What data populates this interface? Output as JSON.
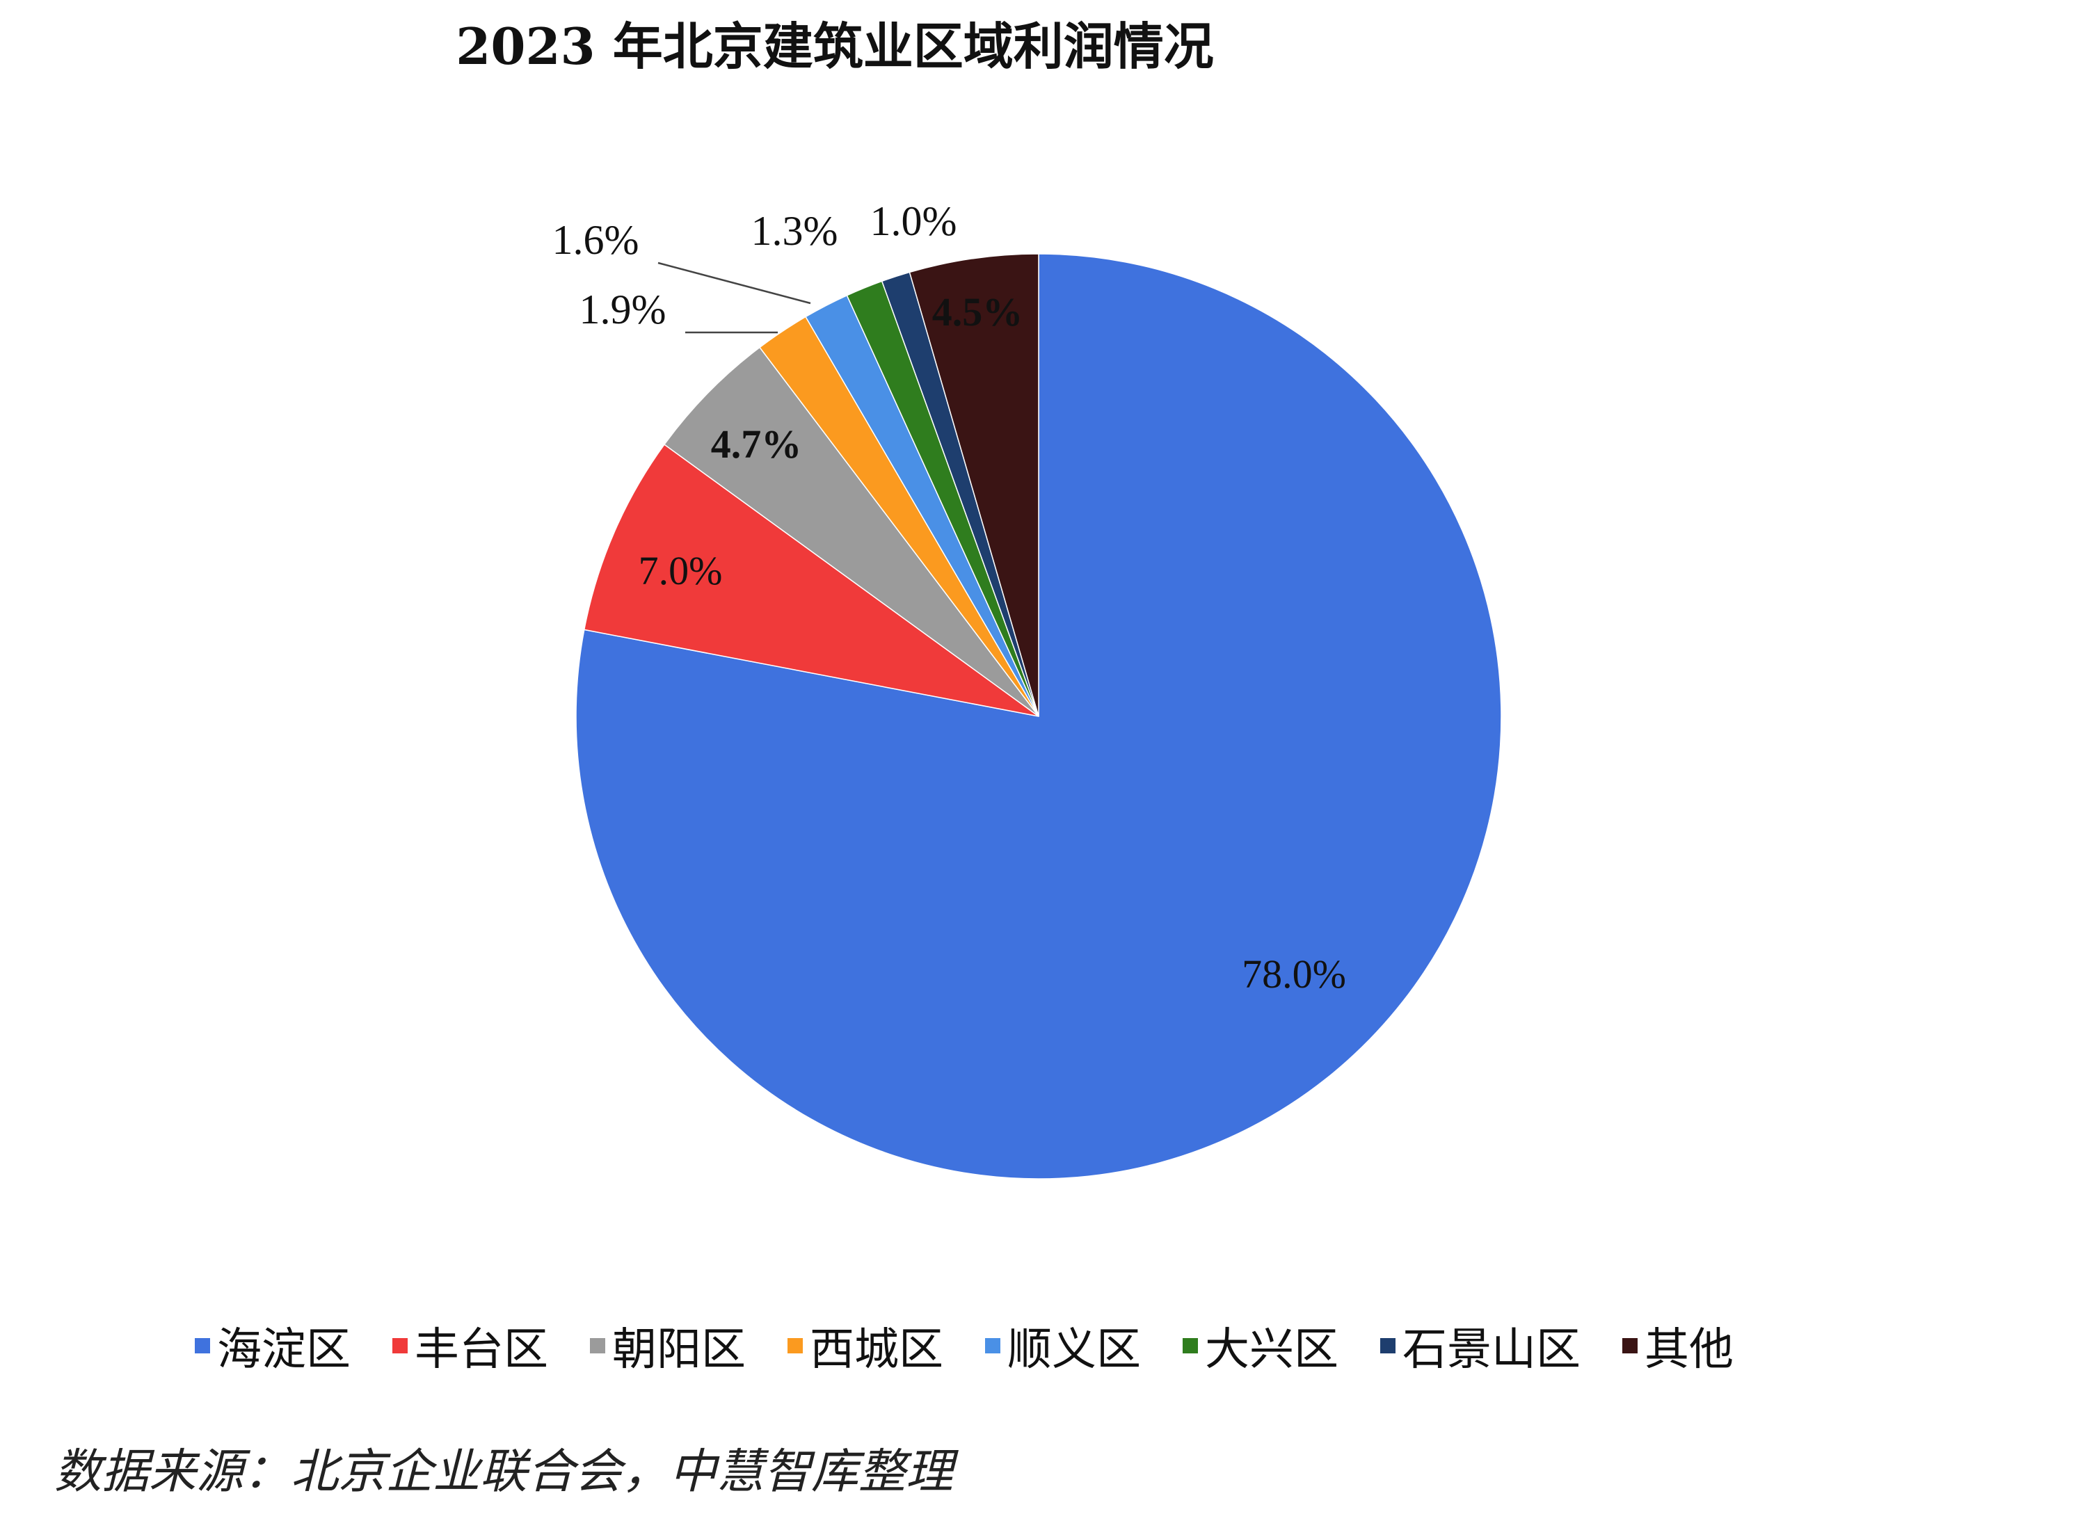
{
  "chart_data": {
    "type": "pie",
    "title": "2023 年北京建筑业区域利润情况",
    "categories": [
      "海淀区",
      "丰台区",
      "朝阳区",
      "西城区",
      "顺义区",
      "大兴区",
      "石景山区",
      "其他"
    ],
    "values": [
      78.0,
      7.0,
      4.7,
      1.9,
      1.6,
      1.3,
      1.0,
      4.5
    ],
    "value_labels": [
      "78.0%",
      "7.0%",
      "4.7%",
      "1.9%",
      "1.6%",
      "1.3%",
      "1.0%",
      "4.5%"
    ],
    "colors": [
      "#3f72de",
      "#f03a3a",
      "#9b9b9b",
      "#fb9a1f",
      "#4a90e6",
      "#2f7d1e",
      "#1e3e6e",
      "#3a1414"
    ],
    "start_angle": "12 o'clock",
    "direction": "clockwise",
    "legend_position": "bottom"
  },
  "source_note": "数据来源：北京企业联合会，中慧智库整理"
}
